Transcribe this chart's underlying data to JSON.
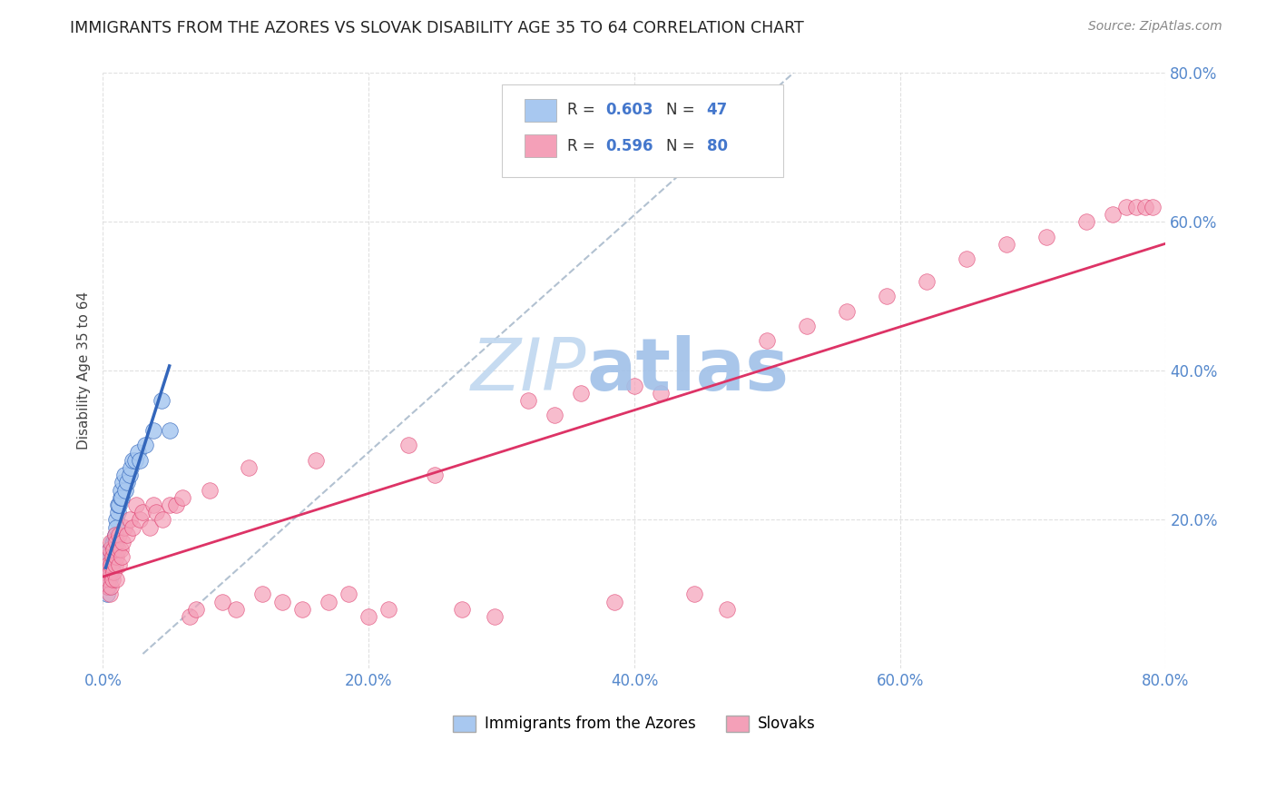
{
  "title": "IMMIGRANTS FROM THE AZORES VS SLOVAK DISABILITY AGE 35 TO 64 CORRELATION CHART",
  "source": "Source: ZipAtlas.com",
  "ylabel": "Disability Age 35 to 64",
  "xticklabels": [
    "0.0%",
    "20.0%",
    "40.0%",
    "60.0%",
    "80.0%"
  ],
  "yticklabels": [
    "20.0%",
    "40.0%",
    "60.0%",
    "80.0%"
  ],
  "xlim": [
    0,
    0.8
  ],
  "ylim": [
    0,
    0.8
  ],
  "legend_label1": "Immigrants from the Azores",
  "legend_label2": "Slovaks",
  "r1": 0.603,
  "n1": 47,
  "r2": 0.596,
  "n2": 80,
  "color1": "#a8c8f0",
  "color2": "#f4a0b8",
  "trendline1_color": "#3366bb",
  "trendline2_color": "#dd3366",
  "dashed_line_color": "#aabbcc",
  "watermark_zip_color": "#c0d8f0",
  "watermark_atlas_color": "#a0c0e8",
  "background_color": "#ffffff",
  "grid_color": "#dddddd",
  "tick_color": "#5588cc",
  "title_color": "#222222",
  "source_color": "#888888",
  "ylabel_color": "#444444",
  "legend_text_color": "#333333",
  "legend_value_color": "#4477cc"
}
